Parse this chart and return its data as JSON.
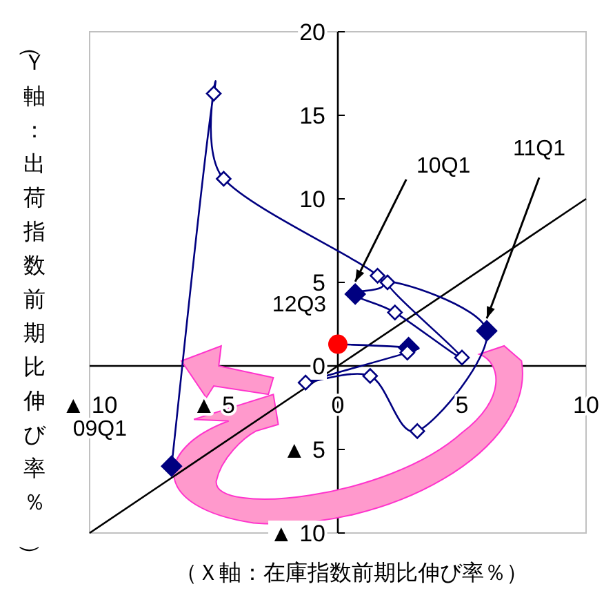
{
  "chart_data": {
    "type": "line",
    "xlabel": "（Ｘ軸：在庫指数前期比伸び率％）",
    "ylabel": "（Ｙ軸：出荷指数前期比伸び率％）",
    "xlim": [
      -10,
      10
    ],
    "ylim": [
      -10,
      20
    ],
    "xticks": [
      {
        "value": -10,
        "label": "▲ 10"
      },
      {
        "value": -5,
        "label": "▲ 5"
      },
      0,
      5,
      10
    ],
    "yticks": [
      {
        "value": -10,
        "label": "▲ 10"
      },
      {
        "value": -5,
        "label": "▲ 5"
      },
      0,
      5,
      10,
      15,
      20
    ],
    "grid": false,
    "series": [
      {
        "color": "#000000",
        "marker": "none",
        "x": [
          -10,
          10
        ],
        "values": [
          -10,
          10
        ]
      },
      {
        "color": "#000080",
        "marker": "none",
        "x": [
          -6.7,
          -5.0,
          -4.6,
          1.6,
          0.7,
          2.3,
          5.0,
          2.0,
          6.0,
          3.2,
          1.3,
          -1.3,
          2.8,
          2.85,
          0
        ],
        "values": [
          -6.0,
          16.3,
          11.2,
          5.4,
          4.3,
          3.2,
          0.5,
          5.0,
          2.1,
          -3.9,
          -0.6,
          -1.0,
          0.8,
          1.1,
          1.3
        ]
      },
      {
        "type": "scatter",
        "color": "#000080",
        "marker": "diamond",
        "x": [
          -6.7,
          0.7,
          6.0,
          2.85
        ],
        "values": [
          -6.0,
          4.3,
          2.1,
          1.1
        ]
      },
      {
        "type": "scatter",
        "color": "#ffffff",
        "marker": "diamond",
        "x": [
          -5.0,
          -4.6,
          1.6,
          2.3,
          5.0,
          2.0,
          3.2,
          1.3,
          -1.3,
          2.8
        ],
        "values": [
          16.3,
          11.2,
          5.4,
          3.2,
          0.5,
          5.0,
          -3.9,
          -0.6,
          -1.0,
          0.8
        ]
      },
      {
        "type": "scatter",
        "color": "#ff0000",
        "marker": "circle",
        "x": [
          0
        ],
        "values": [
          1.3
        ]
      }
    ],
    "annotations": [
      {
        "text": "09Q1",
        "x": -6.7,
        "y": -6.0
      },
      {
        "text": "10Q1",
        "x": 0.7,
        "y": 4.3
      },
      {
        "text": "11Q1",
        "x": 6.0,
        "y": 2.1
      },
      {
        "text": "12Q3",
        "x": 0,
        "y": 1.3
      }
    ]
  }
}
